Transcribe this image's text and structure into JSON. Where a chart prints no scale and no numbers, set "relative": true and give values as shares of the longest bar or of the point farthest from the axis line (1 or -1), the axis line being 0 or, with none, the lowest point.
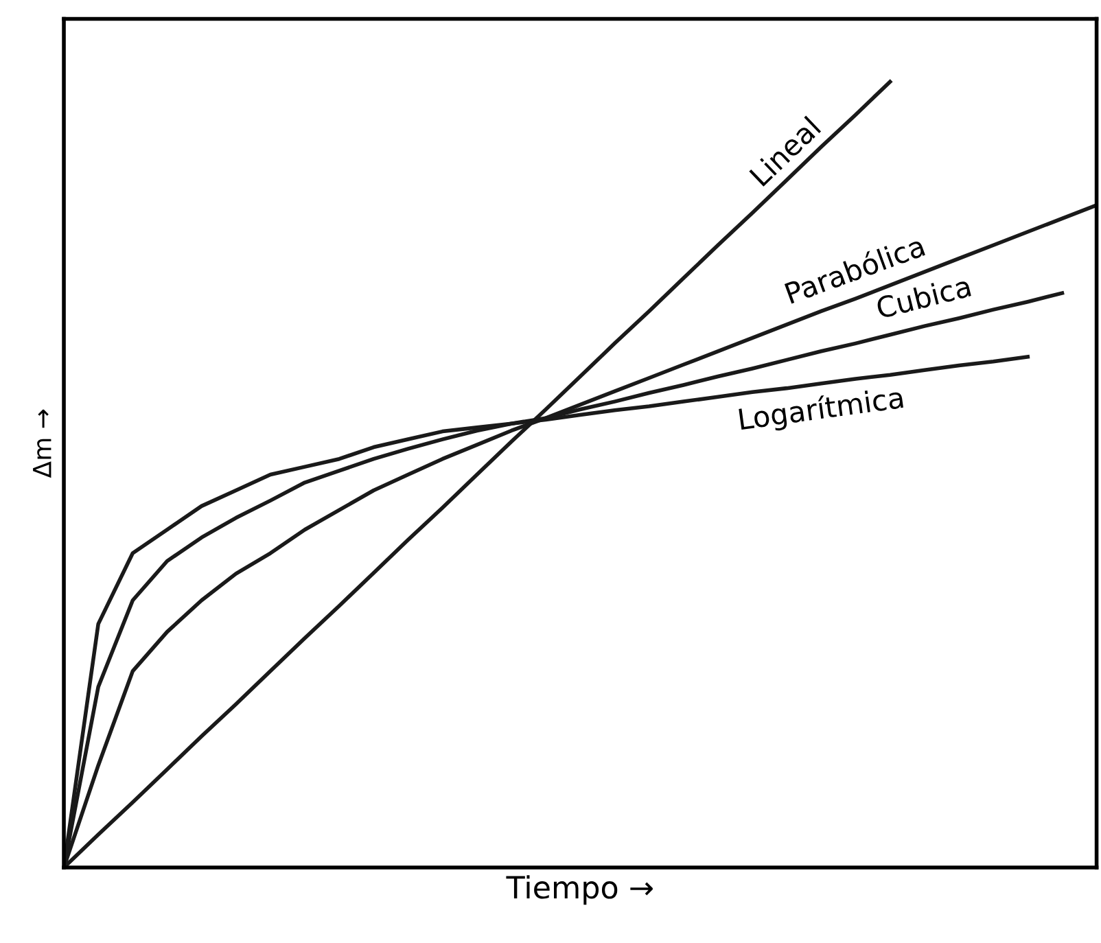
{
  "chart_data": {
    "type": "line",
    "relative": true,
    "xlabel": "Tiempo →",
    "ylabel": "Δm →",
    "categories": [
      null,
      null,
      null,
      null,
      null,
      null,
      null,
      null,
      null,
      null,
      null,
      null,
      null,
      null,
      null,
      null,
      null,
      null,
      null,
      null,
      null,
      null,
      null,
      null,
      null,
      null,
      null,
      null,
      null,
      null,
      null
    ],
    "series": [
      {
        "name": "Lineal",
        "color": "#1a1a1a",
        "values": [
          0,
          0.042,
          0.083,
          0.125,
          0.167,
          0.208,
          0.25,
          0.292,
          0.333,
          0.375,
          0.417,
          0.458,
          0.5,
          0.542,
          0.583,
          0.625,
          0.667,
          0.708,
          0.75,
          0.792,
          0.833,
          0.875,
          0.917,
          0.958,
          1,
          null,
          null,
          null,
          null,
          null,
          null
        ]
      },
      {
        "name": "Parabólica",
        "color": "#1a1a1a",
        "values": [
          0,
          0.13,
          0.25,
          0.3,
          0.34,
          0.374,
          0.4,
          0.43,
          0.455,
          0.48,
          0.5,
          0.52,
          0.538,
          0.556,
          0.572,
          0.589,
          0.606,
          0.623,
          0.64,
          0.657,
          0.674,
          0.691,
          0.708,
          0.724,
          0.741,
          0.758,
          0.775,
          0.792,
          0.809,
          0.826,
          0.843
        ]
      },
      {
        "name": "Cubica",
        "color": "#1a1a1a",
        "values": [
          0,
          0.23,
          0.34,
          0.39,
          0.42,
          0.445,
          0.467,
          0.49,
          0.505,
          0.52,
          0.533,
          0.545,
          0.556,
          0.565,
          0.572,
          0.583,
          0.593,
          0.604,
          0.614,
          0.625,
          0.635,
          0.646,
          0.657,
          0.667,
          0.678,
          0.689,
          0.699,
          0.71,
          0.72,
          0.731,
          null
        ]
      },
      {
        "name": "Logarítmica",
        "color": "#1a1a1a",
        "values": [
          0,
          0.31,
          0.4,
          0.43,
          0.46,
          0.48,
          0.5,
          0.51,
          0.52,
          0.535,
          0.545,
          0.555,
          0.56,
          0.565,
          0.57,
          0.576,
          0.582,
          0.587,
          0.593,
          0.599,
          0.605,
          0.61,
          0.616,
          0.622,
          0.627,
          0.633,
          0.639,
          0.644,
          0.65,
          null,
          null
        ]
      }
    ],
    "legend": false,
    "tick_labels": false,
    "line_style": "solid",
    "marker": "none"
  }
}
